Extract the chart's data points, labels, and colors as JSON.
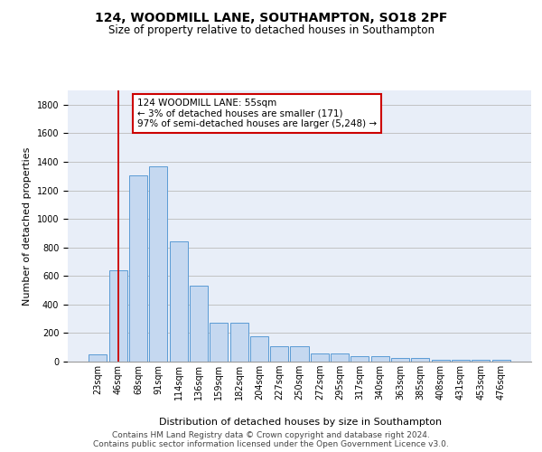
{
  "title1": "124, WOODMILL LANE, SOUTHAMPTON, SO18 2PF",
  "title2": "Size of property relative to detached houses in Southampton",
  "xlabel": "Distribution of detached houses by size in Southampton",
  "ylabel": "Number of detached properties",
  "categories": [
    "23sqm",
    "46sqm",
    "68sqm",
    "91sqm",
    "114sqm",
    "136sqm",
    "159sqm",
    "182sqm",
    "204sqm",
    "227sqm",
    "250sqm",
    "272sqm",
    "295sqm",
    "317sqm",
    "340sqm",
    "363sqm",
    "385sqm",
    "408sqm",
    "431sqm",
    "453sqm",
    "476sqm"
  ],
  "values": [
    50,
    640,
    1305,
    1370,
    845,
    530,
    270,
    270,
    180,
    105,
    105,
    60,
    60,
    40,
    40,
    28,
    28,
    15,
    15,
    15,
    15
  ],
  "bar_color": "#c5d8f0",
  "bar_edge_color": "#5b9bd5",
  "grid_color": "#bbbbbb",
  "background_color": "#e8eef8",
  "vline_x": 1.0,
  "vline_color": "#cc0000",
  "annotation_text": "124 WOODMILL LANE: 55sqm\n← 3% of detached houses are smaller (171)\n97% of semi-detached houses are larger (5,248) →",
  "annotation_box_facecolor": "#ffffff",
  "annotation_border_color": "#cc0000",
  "ylim": [
    0,
    1900
  ],
  "yticks": [
    0,
    200,
    400,
    600,
    800,
    1000,
    1200,
    1400,
    1600,
    1800
  ],
  "footer": "Contains HM Land Registry data © Crown copyright and database right 2024.\nContains public sector information licensed under the Open Government Licence v3.0.",
  "title1_fontsize": 10,
  "title2_fontsize": 8.5,
  "xlabel_fontsize": 8,
  "ylabel_fontsize": 8,
  "tick_fontsize": 7,
  "annotation_fontsize": 7.5,
  "footer_fontsize": 6.5
}
